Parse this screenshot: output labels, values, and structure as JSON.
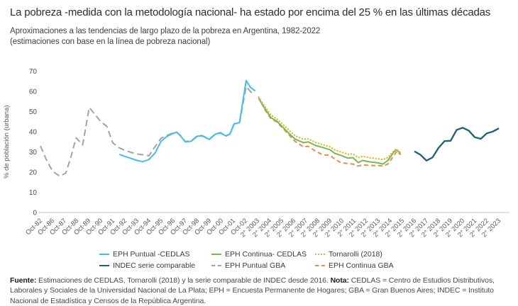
{
  "chart_data": {
    "type": "line",
    "title": "La pobreza -medida con la metodología nacional- ha estado por encima del 25 % en las últimas décadas",
    "subtitle": "Aproximaciones a las tendencias de largo plazo de la pobreza en Argentina, 1982-2022",
    "subtitle2": "(estimaciones con base en la línea de pobreza nacional)",
    "ylabel": "% de población (urbana)",
    "ylim": [
      0,
      70
    ],
    "yticks": [
      0,
      10,
      20,
      30,
      40,
      50,
      60,
      70
    ],
    "grid": false,
    "legend_position": "bottom",
    "axis_color": "#c9c9c9",
    "categories": [
      "Oct-82",
      "Oct-86",
      "Oct-87",
      "Oct-88",
      "Oct-89",
      "Oct-90",
      "Oct-91",
      "Oct-92",
      "Oct-93",
      "Oct-94",
      "Oct-95",
      "Oct-96",
      "Oct-97",
      "Oct-98",
      "Oct-99",
      "Oct-00",
      "Oct-01",
      "Oct-02",
      "2° 2003",
      "2° 2004",
      "2° 2005",
      "2° 2006",
      "2° 2007",
      "2° 2008",
      "2° 2009",
      "2° 2010",
      "2° 2011",
      "2° 2012",
      "2° 2013",
      "2° 2014",
      "2° 2015",
      "2° 2016",
      "2° 2017",
      "2° 2018",
      "2° 2019",
      "2° 2020",
      "2° 2021",
      "2° 2022",
      "2° 2023"
    ],
    "x_is_tick_index": true,
    "draw_order": [
      4,
      0,
      5,
      1,
      2,
      3
    ],
    "series": [
      {
        "name": "EPH Puntual -CEDLAS",
        "key": "eph-puntual-cedlas",
        "color": "#3fc0e6",
        "style": "solid",
        "points": [
          [
            6.55,
            28.8
          ],
          [
            7,
            27.8
          ],
          [
            7.5,
            26.8
          ],
          [
            8,
            25.8
          ],
          [
            8.5,
            25.2
          ],
          [
            9,
            26.3
          ],
          [
            9.5,
            29.5
          ],
          [
            10,
            35.3
          ],
          [
            10.5,
            37.8
          ],
          [
            11,
            39.2
          ],
          [
            11.3,
            39.8
          ],
          [
            11.6,
            38.0
          ],
          [
            12,
            35.0
          ],
          [
            12.5,
            35.3
          ],
          [
            13,
            37.8
          ],
          [
            13.4,
            38.0
          ],
          [
            14,
            36.2
          ],
          [
            14.5,
            38.8
          ],
          [
            14.9,
            39.4
          ],
          [
            15.4,
            37.9
          ],
          [
            15.7,
            38.8
          ],
          [
            16.05,
            43.8
          ],
          [
            16.5,
            44.6
          ],
          [
            17.05,
            65.4
          ],
          [
            17.4,
            62.0
          ],
          [
            17.8,
            60.2
          ]
        ]
      },
      {
        "name": "EPH Continua- CEDLAS",
        "key": "eph-continua-cedlas",
        "color": "#74ba55",
        "style": "solid",
        "points": [
          [
            18.1,
            56.4
          ],
          [
            18.6,
            51.5
          ],
          [
            19.1,
            47.0
          ],
          [
            19.6,
            45.2
          ],
          [
            20,
            42.8
          ],
          [
            20.6,
            39.2
          ],
          [
            21.1,
            36.4
          ],
          [
            21.8,
            34.6
          ],
          [
            22.2,
            35.0
          ],
          [
            22.8,
            33.2
          ],
          [
            23.4,
            32.2
          ],
          [
            24,
            31.1
          ],
          [
            24.4,
            29.3
          ],
          [
            24.9,
            28.3
          ],
          [
            25.5,
            26.9
          ],
          [
            25.9,
            27.2
          ],
          [
            26.35,
            24.7
          ],
          [
            26.7,
            25.8
          ],
          [
            27.3,
            25.1
          ],
          [
            27.9,
            24.7
          ],
          [
            28.4,
            24.0
          ],
          [
            28.8,
            25.8
          ],
          [
            29.3,
            30.0
          ],
          [
            29.5,
            31.1
          ],
          [
            29.85,
            29.3
          ]
        ]
      },
      {
        "name": "Tornarolli (2018)",
        "key": "tornarolli-2018",
        "color": "#e2b83c",
        "style": "dotted",
        "points": [
          [
            18.1,
            57.0
          ],
          [
            18.6,
            52.5
          ],
          [
            19.1,
            48.3
          ],
          [
            19.6,
            46.3
          ],
          [
            20,
            44.2
          ],
          [
            20.6,
            40.8
          ],
          [
            21.1,
            38.0
          ],
          [
            21.8,
            36.3
          ],
          [
            22.2,
            36.5
          ],
          [
            22.8,
            34.7
          ],
          [
            23.4,
            33.6
          ],
          [
            24,
            32.6
          ],
          [
            24.4,
            31.0
          ],
          [
            24.9,
            30.0
          ],
          [
            25.5,
            28.8
          ],
          [
            25.9,
            29.0
          ],
          [
            26.35,
            27.2
          ],
          [
            26.7,
            27.9
          ],
          [
            27.3,
            27.1
          ],
          [
            27.9,
            26.7
          ],
          [
            28.4,
            26.2
          ],
          [
            28.8,
            27.2
          ],
          [
            29.3,
            30.6
          ],
          [
            29.5,
            31.4
          ],
          [
            29.85,
            29.6
          ]
        ]
      },
      {
        "name": "INDEC serie comparable",
        "key": "indec-serie-comparable",
        "color": "#1b607d",
        "style": "solid",
        "points": [
          [
            31,
            30.3
          ],
          [
            31.5,
            28.6
          ],
          [
            32,
            25.7
          ],
          [
            32.5,
            27.3
          ],
          [
            33,
            32.0
          ],
          [
            33.5,
            35.4
          ],
          [
            34,
            35.5
          ],
          [
            34.5,
            40.9
          ],
          [
            35,
            42.0
          ],
          [
            35.5,
            40.6
          ],
          [
            36,
            37.3
          ],
          [
            36.5,
            36.5
          ],
          [
            37,
            39.2
          ],
          [
            37.5,
            40.1
          ],
          [
            38,
            41.7
          ]
        ]
      },
      {
        "name": "EPH Puntual GBA",
        "key": "eph-puntual-gba",
        "color": "#a3a3a3",
        "style": "dashed",
        "dash": "9 5",
        "points": [
          [
            0,
            33.0
          ],
          [
            0.5,
            26.0
          ],
          [
            1,
            20.5
          ],
          [
            1.6,
            18.0
          ],
          [
            2.1,
            19.5
          ],
          [
            2.5,
            27.0
          ],
          [
            2.95,
            37.0
          ],
          [
            3.5,
            33.5
          ],
          [
            4.05,
            52.0
          ],
          [
            4.6,
            48.0
          ],
          [
            5,
            45.0
          ],
          [
            5.5,
            42.7
          ],
          [
            6,
            34.5
          ],
          [
            6.55,
            32.0
          ],
          [
            7,
            30.8
          ],
          [
            7.5,
            29.8
          ],
          [
            8,
            29.0
          ],
          [
            8.5,
            28.6
          ],
          [
            9,
            28.1
          ],
          [
            9.3,
            30.9
          ],
          [
            10,
            36.8
          ],
          [
            10.5,
            38.2
          ],
          [
            11,
            39.4
          ],
          [
            11.3,
            39.6
          ],
          [
            11.6,
            38.2
          ],
          [
            12,
            35.2
          ],
          [
            12.5,
            35.5
          ],
          [
            13,
            38.0
          ],
          [
            13.4,
            38.1
          ],
          [
            14,
            36.3
          ],
          [
            14.5,
            38.9
          ],
          [
            14.9,
            39.6
          ],
          [
            15.4,
            38.0
          ],
          [
            15.7,
            38.9
          ],
          [
            16.05,
            44.0
          ],
          [
            16.5,
            44.5
          ],
          [
            17.05,
            62.4
          ],
          [
            17.4,
            60.0
          ],
          [
            17.7,
            58.2
          ]
        ]
      },
      {
        "name": "EPH Continua GBA",
        "key": "eph-continua-gba",
        "color": "#e98c4f",
        "style": "dashed",
        "dash": "6 4",
        "points": [
          [
            18.05,
            57.4
          ],
          [
            18.6,
            51.0
          ],
          [
            19.1,
            46.5
          ],
          [
            19.6,
            44.8
          ],
          [
            20,
            42.3
          ],
          [
            20.6,
            38.5
          ],
          [
            21.1,
            35.3
          ],
          [
            21.8,
            32.5
          ],
          [
            22.2,
            32.8
          ],
          [
            22.8,
            30.4
          ],
          [
            23.4,
            28.6
          ],
          [
            24,
            28.3
          ],
          [
            24.4,
            26.5
          ],
          [
            24.9,
            24.7
          ],
          [
            25.5,
            24.2
          ],
          [
            25.9,
            24.0
          ],
          [
            26.35,
            23.0
          ],
          [
            26.7,
            23.6
          ],
          [
            27.3,
            23.3
          ],
          [
            27.9,
            23.3
          ],
          [
            28.4,
            23.0
          ],
          [
            28.8,
            24.0
          ],
          [
            29.3,
            28.3
          ],
          [
            29.55,
            30.4
          ],
          [
            29.85,
            28.6
          ]
        ]
      }
    ]
  },
  "footer": {
    "fuente_label": "Fuente:",
    "fuente_text": " Estimaciones de CEDLAS, Tornarolli (2018) y la serie comparable de INDEC desde 2016. ",
    "nota_label": "Nota:",
    "nota_text": " CEDLAS = Centro de Estudios Distributivos, Laborales y Sociales de la Universidad Nacional de La Plata; EPH = Encuesta Permanente de Hogares; GBA = Gran Buenos Aires; INDEC = Instituto Nacional de Estadística y Censos de la República Argentina."
  }
}
